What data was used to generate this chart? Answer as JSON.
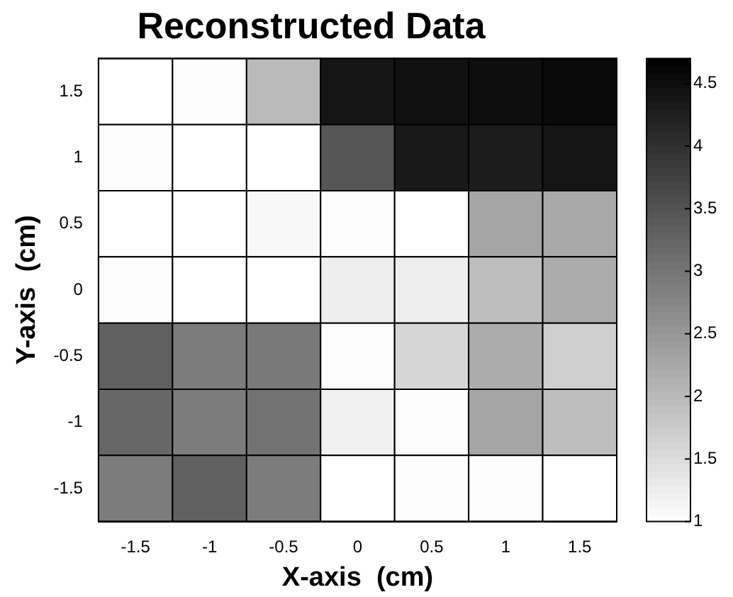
{
  "chart_data": {
    "type": "heatmap",
    "title": "Reconstructed Data",
    "xlabel": "X-axis  (cm)",
    "ylabel": "Y-axis  (cm)",
    "categories": [
      "-1.5",
      "-1",
      "-0.5",
      "0",
      "0.5",
      "1",
      "1.5"
    ],
    "y_categories": [
      "1.5",
      "1",
      "0.5",
      "0",
      "-0.5",
      "-1",
      "-1.5"
    ],
    "cells": [
      [
        1.0,
        1.05,
        2.0,
        4.4,
        4.45,
        4.5,
        4.55
      ],
      [
        1.05,
        1.0,
        1.0,
        3.45,
        4.35,
        4.3,
        4.4
      ],
      [
        1.0,
        1.0,
        1.1,
        1.05,
        1.0,
        2.3,
        2.25
      ],
      [
        1.05,
        1.0,
        1.0,
        1.25,
        1.25,
        1.95,
        2.2
      ],
      [
        3.3,
        2.9,
        2.95,
        1.05,
        1.6,
        2.2,
        1.7
      ],
      [
        3.2,
        2.9,
        3.05,
        1.2,
        1.05,
        2.3,
        1.95
      ],
      [
        2.9,
        3.3,
        2.9,
        1.0,
        1.05,
        1.05,
        1.0
      ]
    ],
    "clim": [
      1,
      4.7
    ],
    "cticks": [
      1,
      1.5,
      2,
      2.5,
      3,
      3.5,
      4,
      4.5
    ]
  }
}
